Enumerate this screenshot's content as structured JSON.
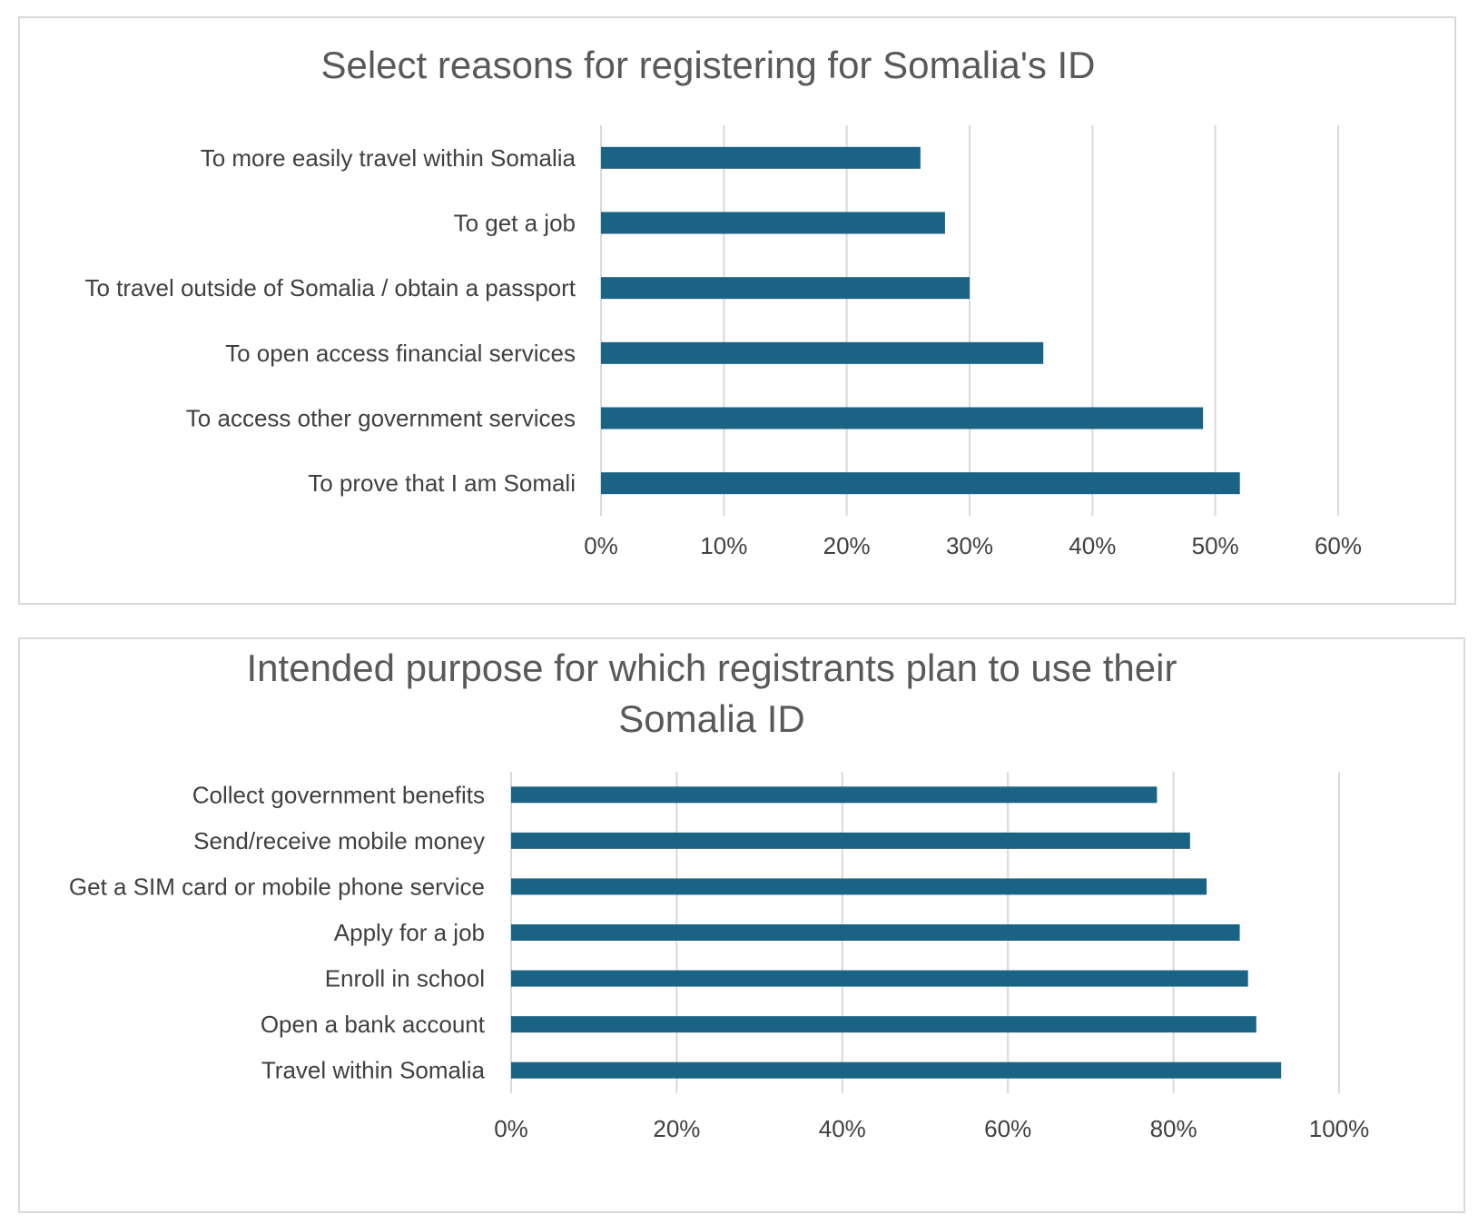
{
  "colors": {
    "bar": "#1a6384",
    "gridline": "#d9d9d9",
    "title": "#595959",
    "label": "#404040",
    "panel_border": "#d9d9d9"
  },
  "chart_data": [
    {
      "type": "bar",
      "orientation": "horizontal",
      "title": "Select reasons for registering for Somalia's ID",
      "categories": [
        "To more easily travel within Somalia",
        "To get a job",
        "To travel outside of Somalia / obtain a passport",
        "To open access financial services",
        "To access other government services",
        "To prove that I am Somali"
      ],
      "values": [
        26,
        28,
        30,
        36,
        49,
        52
      ],
      "xlim": [
        0,
        60
      ],
      "x_ticks": [
        0,
        10,
        20,
        30,
        40,
        50,
        60
      ],
      "x_tick_labels": [
        "0%",
        "10%",
        "20%",
        "30%",
        "40%",
        "50%",
        "60%"
      ],
      "grid": true,
      "legend": "none"
    },
    {
      "type": "bar",
      "orientation": "horizontal",
      "title": "Intended purpose for which registrants plan to use their Somalia ID",
      "categories": [
        "Collect government benefits",
        "Send/receive mobile money",
        "Get a SIM card or mobile phone service",
        "Apply for a job",
        "Enroll in school",
        "Open a bank account",
        "Travel within Somalia"
      ],
      "values": [
        78,
        82,
        84,
        88,
        89,
        90,
        93
      ],
      "xlim": [
        0,
        100
      ],
      "x_ticks": [
        0,
        20,
        40,
        60,
        80,
        100
      ],
      "x_tick_labels": [
        "0%",
        "20%",
        "40%",
        "60%",
        "80%",
        "100%"
      ],
      "grid": true,
      "legend": "none"
    }
  ]
}
